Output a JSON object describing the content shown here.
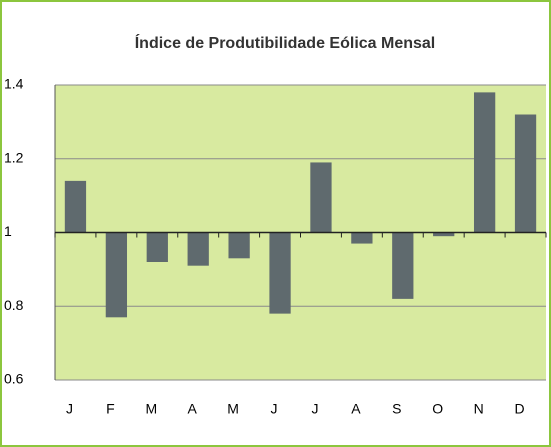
{
  "chart_data": {
    "type": "bar",
    "title": "Índice de Produtibilidade Eólica Mensal",
    "categories": [
      "J",
      "F",
      "M",
      "A",
      "M",
      "J",
      "J",
      "A",
      "S",
      "O",
      "N",
      "D"
    ],
    "values": [
      1.14,
      0.77,
      0.92,
      0.91,
      0.93,
      0.78,
      1.19,
      0.97,
      0.82,
      0.99,
      1.38,
      1.32
    ],
    "color": "#5f6a6e",
    "ylim": [
      0.6,
      1.4
    ],
    "yticks": [
      0.6,
      0.8,
      1,
      1.2,
      1.4
    ],
    "grid": true,
    "x_axis_crosses": 1
  }
}
